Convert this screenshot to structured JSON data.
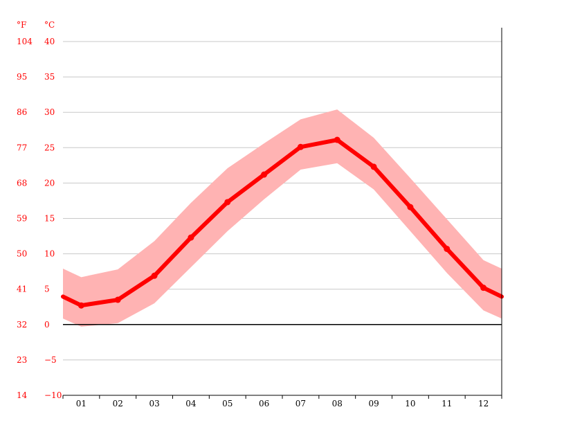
{
  "chart_data": {
    "type": "line",
    "title": "",
    "xlabel": "",
    "ylabel": "",
    "unit_labels": {
      "fahrenheit": "°F",
      "celsius": "°C"
    },
    "categories": [
      "01",
      "02",
      "03",
      "04",
      "05",
      "06",
      "07",
      "08",
      "09",
      "10",
      "11",
      "12"
    ],
    "ylim": [
      -10,
      40
    ],
    "yticks_c": [
      "40",
      "35",
      "30",
      "25",
      "20",
      "15",
      "10",
      "5",
      "0",
      "−5",
      "−10"
    ],
    "yticks_f": [
      "104",
      "95",
      "86",
      "77",
      "68",
      "59",
      "50",
      "41",
      "32",
      "23",
      "14"
    ],
    "grid": true,
    "series": [
      {
        "role": "mean",
        "values": [
          2.7,
          3.5,
          6.9,
          12.3,
          17.3,
          21.2,
          25.1,
          26.1,
          22.3,
          16.6,
          10.7,
          5.2
        ]
      },
      {
        "role": "max",
        "values": [
          6.7,
          7.8,
          11.8,
          17.2,
          22.1,
          25.6,
          29.0,
          30.4,
          26.4,
          20.7,
          14.9,
          9.1
        ]
      },
      {
        "role": "min",
        "values": [
          -0.3,
          0.2,
          3.0,
          8.1,
          13.2,
          17.7,
          21.9,
          22.8,
          19.1,
          13.2,
          7.3,
          2.0
        ]
      }
    ],
    "colors": {
      "line": "#ff0000",
      "band": "#ffb3b3",
      "grid": "#c8c8c8",
      "zero": "#000000",
      "tick_text": "#ff0000"
    }
  }
}
